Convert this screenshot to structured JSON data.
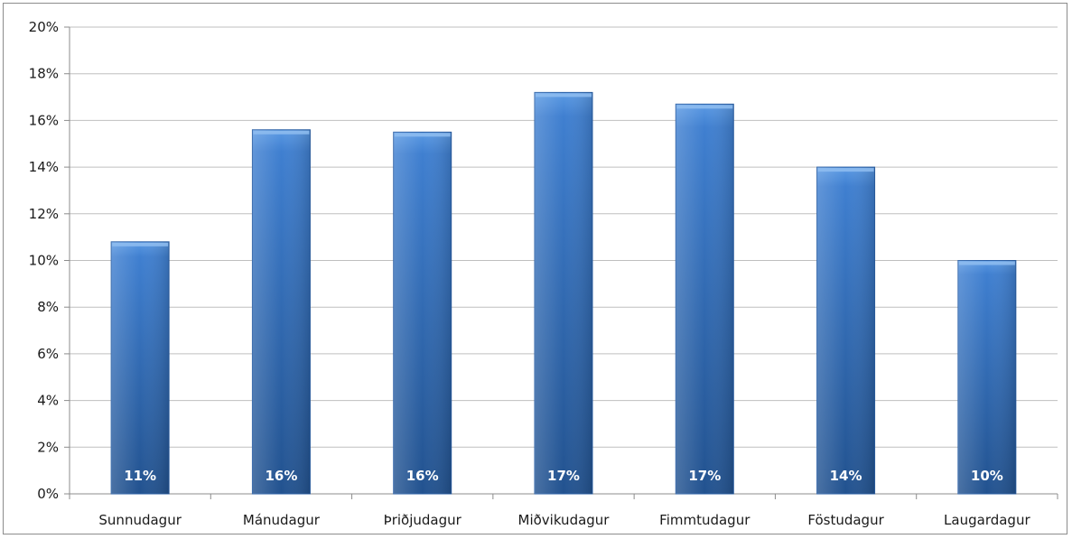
{
  "chart_data": {
    "type": "bar",
    "categories": [
      "Sunnudagur",
      "Mánudagur",
      "Þriðjudagur",
      "Miðvikudagur",
      "Fimmtudagur",
      "Föstudagur",
      "Laugardagur"
    ],
    "values": [
      10.8,
      15.6,
      15.5,
      17.2,
      16.7,
      14.0,
      10.0
    ],
    "data_labels": [
      "11%",
      "16%",
      "16%",
      "17%",
      "17%",
      "14%",
      "10%"
    ],
    "y_ticks": [
      "0%",
      "2%",
      "4%",
      "6%",
      "8%",
      "10%",
      "12%",
      "14%",
      "16%",
      "18%",
      "20%"
    ],
    "ylim": [
      0,
      20
    ],
    "y_unit": "%",
    "grid": true,
    "legend": "none",
    "bar_color": "#3a78c8",
    "bar_color_dark": "#1f4f8f",
    "grid_color": "#bfbfbf",
    "axis_color": "#8c8c8c"
  }
}
